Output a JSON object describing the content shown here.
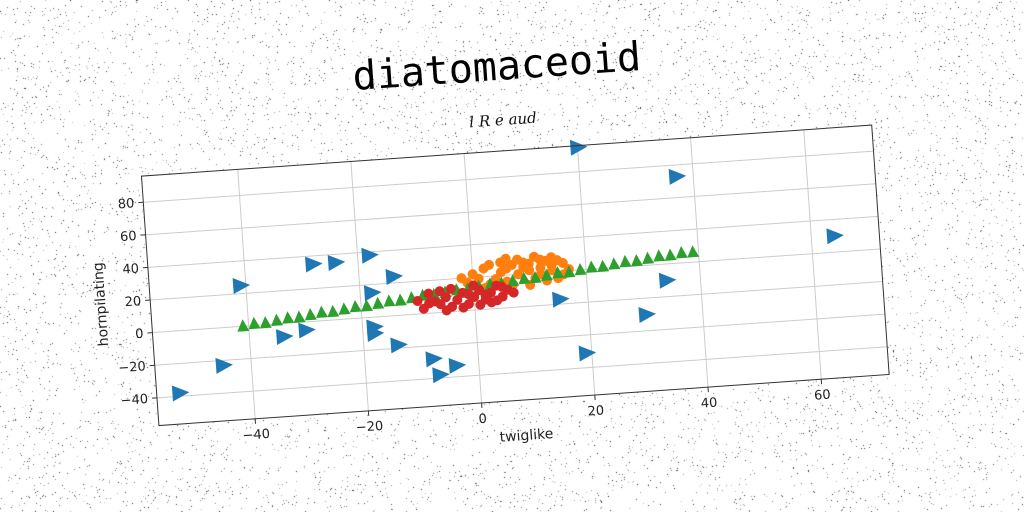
{
  "chart_data": {
    "type": "scatter",
    "title": "diatomaceoid",
    "subtitle": "l R e aud",
    "xlabel": "twiglike",
    "ylabel": "hornpilating",
    "xlim": [
      -57,
      72
    ],
    "ylim": [
      -57,
      96
    ],
    "xticks": [
      -40,
      -20,
      0,
      20,
      40,
      60
    ],
    "yticks": [
      -40,
      -20,
      0,
      20,
      40,
      60,
      80
    ],
    "grid": true,
    "colors": {
      "blue": "#1f77b4",
      "orange": "#ff7f0e",
      "green": "#2ca02c",
      "red": "#d62728",
      "grid": "#cccccc",
      "frame": "#333333"
    },
    "series": [
      {
        "marker": "triangle-right",
        "color": "#1f77b4",
        "points": [
          [
            20,
            95
          ],
          [
            37,
            73
          ],
          [
            64,
            30
          ],
          [
            -41,
            25
          ],
          [
            -28,
            35
          ],
          [
            -24,
            35
          ],
          [
            -18,
            38
          ],
          [
            -14,
            24
          ],
          [
            -18,
            15
          ],
          [
            -34,
            -8
          ],
          [
            -30,
            -5
          ],
          [
            -18,
            -6
          ],
          [
            -18,
            -10
          ],
          [
            -14,
            -18
          ],
          [
            -45,
            -23
          ],
          [
            -53,
            -38
          ],
          [
            -8,
            -28
          ],
          [
            -4,
            -33
          ],
          [
            -7,
            -38
          ],
          [
            15,
            3
          ],
          [
            34,
            10
          ],
          [
            30,
            -10
          ],
          [
            19,
            -31
          ]
        ]
      },
      {
        "marker": "circle",
        "color": "#ff7f0e",
        "points": [
          [
            -2,
            20
          ],
          [
            0,
            22
          ],
          [
            2,
            25
          ],
          [
            3,
            27
          ],
          [
            5,
            28
          ],
          [
            6,
            30
          ],
          [
            7,
            26
          ],
          [
            8,
            29
          ],
          [
            9,
            27
          ],
          [
            10,
            26
          ],
          [
            11,
            30
          ],
          [
            12,
            28
          ],
          [
            13,
            27
          ],
          [
            14,
            29
          ],
          [
            15,
            27
          ],
          [
            16,
            25
          ],
          [
            4,
            18
          ],
          [
            6,
            16
          ],
          [
            8,
            20
          ],
          [
            10,
            22
          ],
          [
            12,
            19
          ],
          [
            14,
            21
          ],
          [
            16,
            18
          ],
          [
            3,
            15
          ],
          [
            7,
            14
          ],
          [
            11,
            17
          ],
          [
            13,
            15
          ],
          [
            15,
            16
          ],
          [
            -1,
            17
          ],
          [
            1,
            19
          ],
          [
            5,
            22
          ],
          [
            9,
            24
          ],
          [
            12,
            23
          ],
          [
            17,
            21
          ],
          [
            2,
            13
          ],
          [
            10,
            13
          ],
          [
            6,
            24
          ],
          [
            14,
            24
          ]
        ]
      },
      {
        "marker": "triangle-up",
        "color": "#2ca02c",
        "points": [
          [
            -41,
            0
          ],
          [
            -39,
            1
          ],
          [
            -37,
            1
          ],
          [
            -35,
            2
          ],
          [
            -33,
            3
          ],
          [
            -31,
            3
          ],
          [
            -29,
            4
          ],
          [
            -27,
            5
          ],
          [
            -25,
            5
          ],
          [
            -23,
            6
          ],
          [
            -21,
            7
          ],
          [
            -19,
            7
          ],
          [
            -17,
            8
          ],
          [
            -15,
            9
          ],
          [
            -13,
            9
          ],
          [
            -11,
            10
          ],
          [
            -9,
            11
          ],
          [
            -7,
            11
          ],
          [
            -5,
            12
          ],
          [
            -3,
            13
          ],
          [
            -1,
            13
          ],
          [
            1,
            14
          ],
          [
            3,
            15
          ],
          [
            5,
            15
          ],
          [
            7,
            16
          ],
          [
            9,
            17
          ],
          [
            11,
            17
          ],
          [
            13,
            18
          ],
          [
            15,
            19
          ],
          [
            17,
            19
          ],
          [
            19,
            20
          ],
          [
            21,
            21
          ],
          [
            23,
            21
          ],
          [
            25,
            22
          ],
          [
            27,
            23
          ],
          [
            29,
            23
          ],
          [
            31,
            24
          ],
          [
            33,
            25
          ],
          [
            35,
            25
          ],
          [
            37,
            26
          ],
          [
            39,
            26
          ]
        ]
      },
      {
        "marker": "circle",
        "color": "#d62728",
        "points": [
          [
            -10,
            8
          ],
          [
            -8,
            12
          ],
          [
            -6,
            5
          ],
          [
            -5,
            9
          ],
          [
            -4,
            14
          ],
          [
            -3,
            7
          ],
          [
            -2,
            11
          ],
          [
            -1,
            4
          ],
          [
            0,
            8
          ],
          [
            1,
            12
          ],
          [
            2,
            6
          ],
          [
            3,
            10
          ],
          [
            4,
            14
          ],
          [
            5,
            7
          ],
          [
            6,
            11
          ],
          [
            -9,
            3
          ],
          [
            -7,
            7
          ],
          [
            -2,
            2
          ],
          [
            1,
            3
          ],
          [
            3,
            4
          ],
          [
            -6,
            13
          ],
          [
            0,
            15
          ],
          [
            5,
            13
          ],
          [
            -4,
            3
          ],
          [
            2,
            9
          ],
          [
            -8,
            6
          ],
          [
            4,
            5
          ],
          [
            -1,
            10
          ],
          [
            7,
            9
          ],
          [
            -5,
            1
          ]
        ]
      }
    ]
  }
}
